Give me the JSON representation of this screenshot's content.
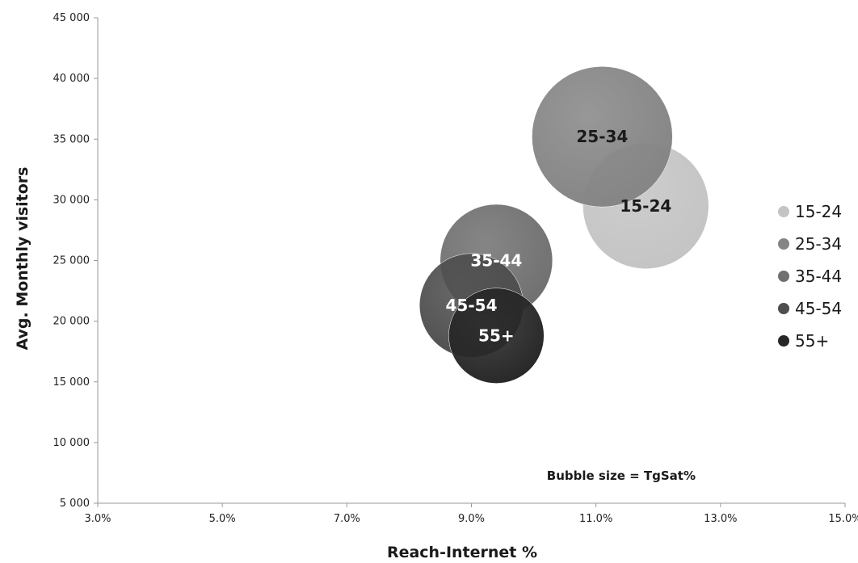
{
  "chart_data": {
    "type": "bubble",
    "xlabel": "Reach-Internet %",
    "ylabel": "Avg. Monthly visitors",
    "xlim": [
      3.0,
      15.0
    ],
    "ylim": [
      5000,
      45000
    ],
    "x_ticks": [
      3.0,
      5.0,
      7.0,
      9.0,
      11.0,
      13.0,
      15.0
    ],
    "x_tick_labels": [
      "3.0%",
      "5.0%",
      "7.0%",
      "9.0%",
      "11.0%",
      "13.0%",
      "15.0%"
    ],
    "y_ticks": [
      5000,
      10000,
      15000,
      20000,
      25000,
      30000,
      35000,
      40000,
      45000
    ],
    "y_tick_labels": [
      "5 000",
      "10 000",
      "15 000",
      "20 000",
      "25 000",
      "30 000",
      "35 000",
      "40 000",
      "45 000"
    ],
    "grid": false,
    "legend_position": "right",
    "annotation": "Bubble size = TgSat%",
    "series": [
      {
        "name": "15-24",
        "x": 11.8,
        "y": 29500,
        "size": 1.03,
        "color": "#c4c4c4",
        "label_color": "#1a1a1a"
      },
      {
        "name": "25-34",
        "x": 11.1,
        "y": 35200,
        "size": 1.15,
        "color": "#858585",
        "label_color": "#1a1a1a"
      },
      {
        "name": "35-44",
        "x": 9.4,
        "y": 25000,
        "size": 0.92,
        "color": "#707070",
        "label_color": "#ffffff"
      },
      {
        "name": "45-54",
        "x": 9.0,
        "y": 21300,
        "size": 0.85,
        "color": "#4e4e4e",
        "label_color": "#ffffff"
      },
      {
        "name": "55+",
        "x": 9.4,
        "y": 18800,
        "size": 0.78,
        "color": "#272727",
        "label_color": "#ffffff"
      }
    ]
  }
}
